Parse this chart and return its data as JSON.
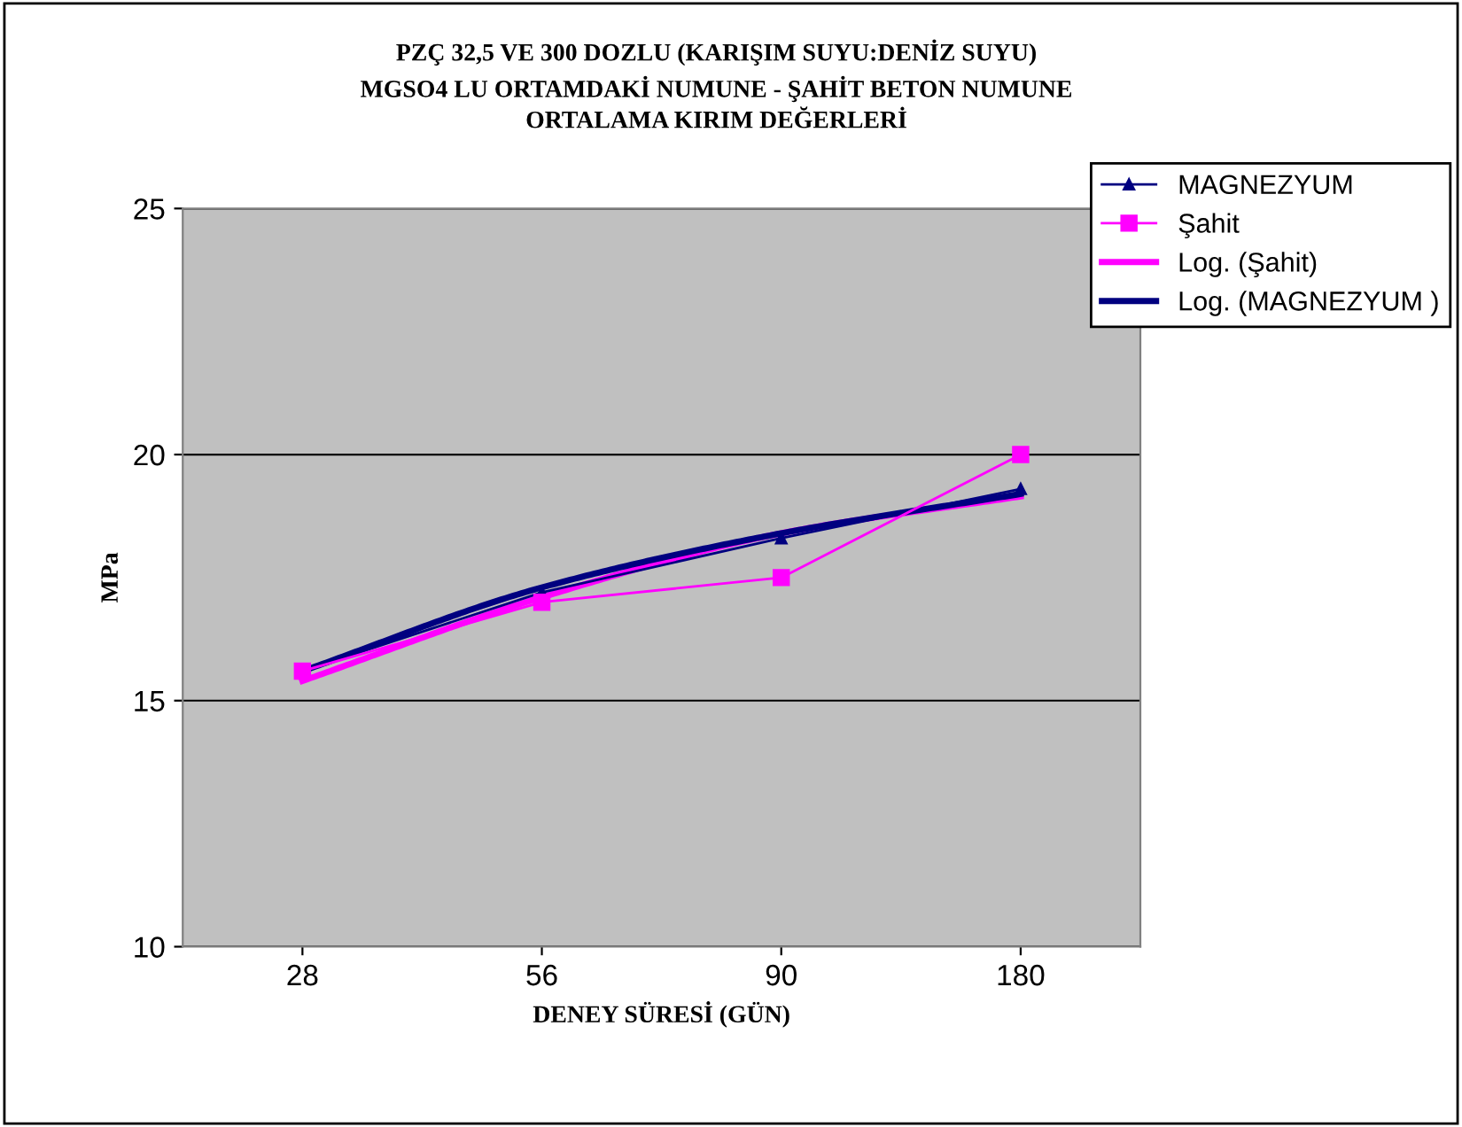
{
  "chart_data": {
    "type": "line",
    "title": "PZÇ 32,5 VE 300 DOZLU (KARIŞIM SUYU:DENİZ SUYU)\nMGSO4 LU ORTAMDAKİ NUMUNE - ŞAHİT BETON NUMUNE\nORTALAMA KIRIM DEĞERLERİ",
    "xlabel": "DENEY SÜRESİ (GÜN)",
    "ylabel": "MPa",
    "categories": [
      "28",
      "56",
      "90",
      "180"
    ],
    "series": [
      {
        "name": "MAGNEZYUM",
        "color": "#000080",
        "values": [
          15.6,
          17.2,
          18.3,
          19.3
        ],
        "marker": "triangle"
      },
      {
        "name": "Şahit",
        "color": "#ff00ff",
        "values": [
          15.6,
          17.0,
          17.5,
          20.0
        ],
        "marker": "square"
      },
      {
        "name": "Log. (Şahit)",
        "color": "#ff00ff",
        "values": [
          15.4,
          17.1,
          18.4,
          19.15
        ],
        "marker": "none"
      },
      {
        "name": "Log. (MAGNEZYUM )",
        "color": "#000080",
        "values": [
          15.6,
          17.3,
          18.4,
          19.2
        ],
        "marker": "none"
      }
    ],
    "ylim": [
      10,
      25
    ],
    "yticks": [
      10,
      15,
      20,
      25
    ],
    "grid": "y",
    "legend": "top right"
  }
}
